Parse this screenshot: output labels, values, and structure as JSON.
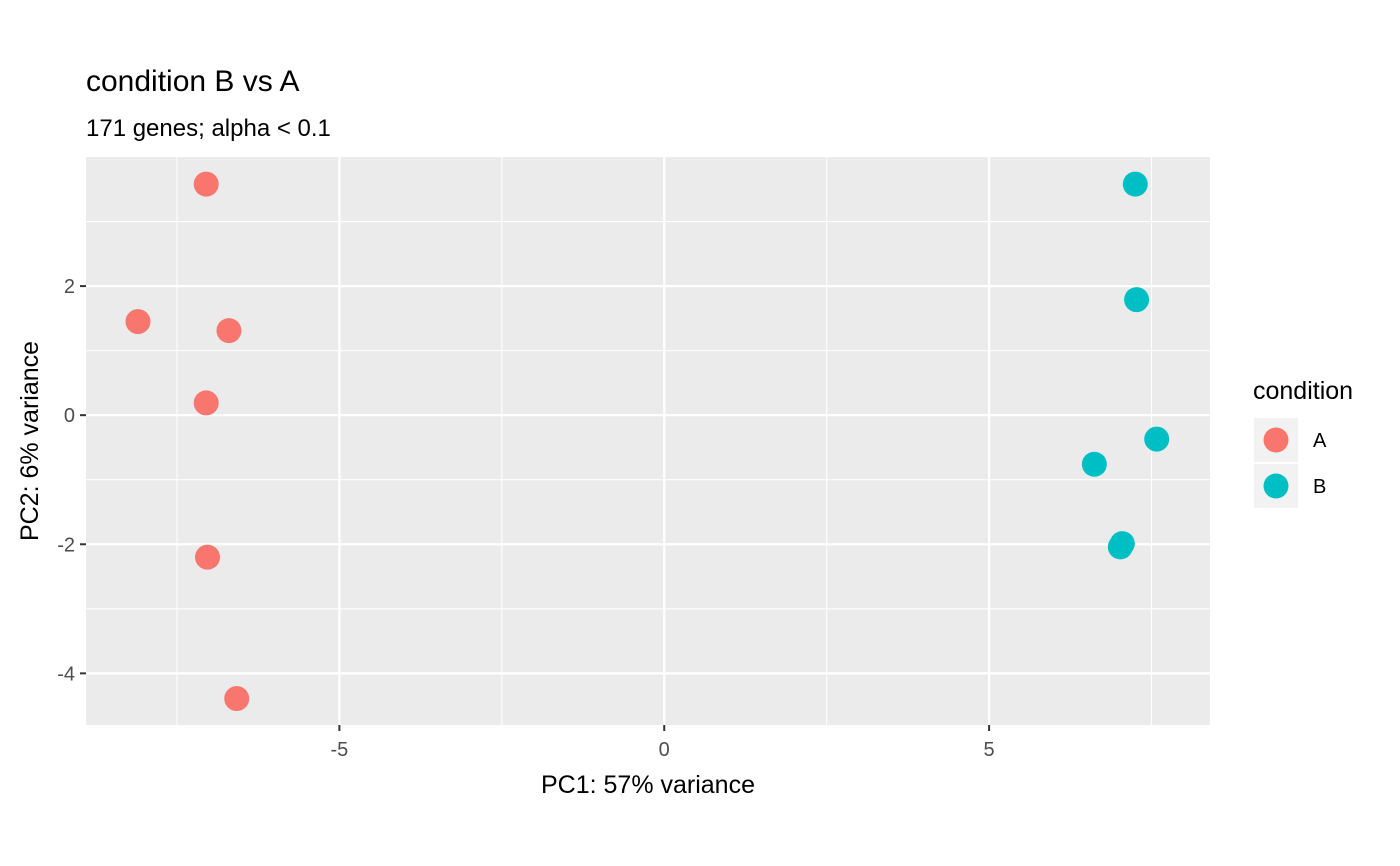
{
  "chart_data": {
    "type": "scatter",
    "title": "condition B vs A",
    "subtitle": "171 genes; alpha < 0.1",
    "xlabel": "PC1: 57% variance",
    "ylabel": "PC2: 6% variance",
    "xlim": [
      -8.9,
      8.4
    ],
    "ylim": [
      -4.8,
      4.0
    ],
    "x_ticks": [
      -5,
      0,
      5
    ],
    "x_tick_labels": [
      "-5",
      "0",
      "5"
    ],
    "y_ticks": [
      -4,
      -2,
      0,
      2
    ],
    "y_tick_labels": [
      "-4",
      "-2",
      "0",
      "2"
    ],
    "grid": true,
    "legend": {
      "title": "condition",
      "placement": "right"
    },
    "series": [
      {
        "name": "A",
        "color": "#F8766D",
        "points": [
          {
            "x": -7.05,
            "y": 3.58
          },
          {
            "x": -8.1,
            "y": 1.45
          },
          {
            "x": -6.7,
            "y": 1.31
          },
          {
            "x": -7.05,
            "y": 0.19
          },
          {
            "x": -7.03,
            "y": -2.2
          },
          {
            "x": -6.58,
            "y": -4.39
          }
        ]
      },
      {
        "name": "B",
        "color": "#00BFC4",
        "points": [
          {
            "x": 7.25,
            "y": 3.58
          },
          {
            "x": 7.27,
            "y": 1.79
          },
          {
            "x": 7.58,
            "y": -0.37
          },
          {
            "x": 6.62,
            "y": -0.76
          },
          {
            "x": 7.05,
            "y": -1.99
          },
          {
            "x": 7.02,
            "y": -2.04
          }
        ]
      }
    ]
  }
}
